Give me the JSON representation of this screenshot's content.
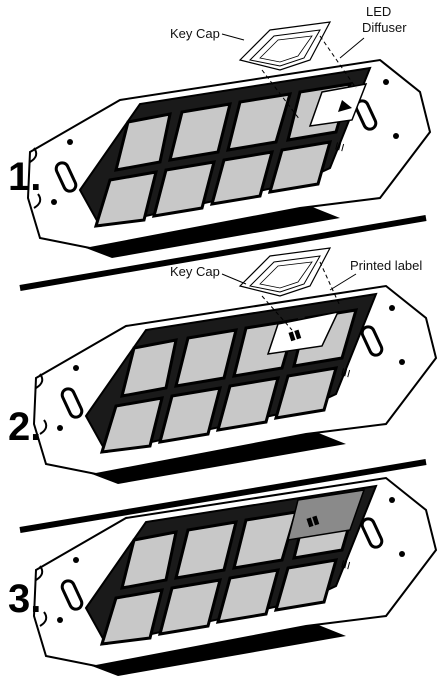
{
  "panels": [
    {
      "step": "1.",
      "callouts": [
        {
          "id": "keycap",
          "text": "Key Cap"
        },
        {
          "id": "led-line1",
          "text": "LED"
        },
        {
          "id": "led-line2",
          "text": "Diffuser"
        }
      ]
    },
    {
      "step": "2.",
      "callouts": [
        {
          "id": "keycap",
          "text": "Key Cap"
        },
        {
          "id": "label",
          "text": "Printed label"
        }
      ]
    },
    {
      "step": "3.",
      "callouts": []
    }
  ],
  "colors": {
    "ink": "#000000",
    "keys": "#c8c8c8",
    "keys_dark": "#1a1a1a",
    "label_hatch": "#8a8a8a",
    "plate": "#ffffff"
  },
  "icons": [
    "mounting-plate",
    "key-grid",
    "key-cap",
    "led-diffuser",
    "printed-label",
    "screw-slot"
  ]
}
